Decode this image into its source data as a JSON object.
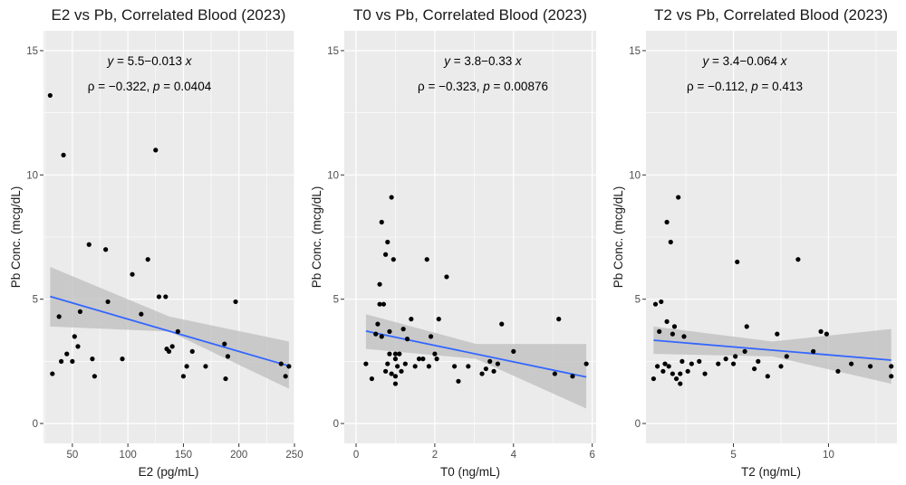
{
  "chart_data": [
    {
      "type": "scatter",
      "title": "E2 vs Pb, Correlated Blood (2023)",
      "xlabel": "E2 (pg/mL)",
      "ylabel": "Pb Conc. (mcg/dL)",
      "xlim": [
        24,
        250
      ],
      "ylim": [
        -0.8,
        15.8
      ],
      "xticks": [
        50,
        100,
        150,
        200,
        250
      ],
      "yticks": [
        0,
        5,
        10,
        15
      ],
      "grid": true,
      "colors": {
        "panel": "#ebebeb",
        "grid": "#ffffff",
        "point": "#000000",
        "line": "#3366ff",
        "band": "#bdbdbd"
      },
      "annotation": {
        "eq": {
          "y_var": "y",
          "eq_mid": " = 5.5−0.013 ",
          "x_var": "x"
        },
        "stat": {
          "rho_label": "ρ = −0.322, ",
          "p_var": "p",
          "p_val": " = 0.0404"
        }
      },
      "fit": {
        "intercept": 5.5,
        "slope": -0.013,
        "ci_low_ends": [
          3.9,
          1.4
        ],
        "ci_high_ends": [
          6.3,
          3.3
        ],
        "ci_low_mid": 3.7,
        "ci_high_mid": 4.3
      },
      "x": [
        30,
        32,
        38,
        40,
        42,
        45,
        50,
        52,
        55,
        57,
        65,
        68,
        70,
        80,
        82,
        95,
        104,
        112,
        118,
        125,
        128,
        134,
        135,
        137,
        140,
        145,
        150,
        153,
        158,
        170,
        187,
        188,
        190,
        197,
        238,
        242,
        245
      ],
      "y": [
        13.2,
        2.0,
        4.3,
        2.5,
        10.8,
        2.8,
        2.5,
        3.5,
        3.1,
        4.5,
        7.2,
        2.6,
        1.9,
        7.0,
        4.9,
        2.6,
        6.0,
        4.4,
        6.6,
        11.0,
        5.1,
        5.1,
        3.0,
        2.9,
        3.1,
        3.7,
        1.9,
        2.3,
        2.9,
        2.3,
        3.2,
        1.8,
        2.7,
        4.9,
        2.4,
        1.9,
        2.3
      ]
    },
    {
      "type": "scatter",
      "title": "T0 vs Pb, Correlated Blood (2023)",
      "xlabel": "T0 (ng/mL)",
      "ylabel": "Pb Conc. (mcg/dL)",
      "xlim": [
        -0.3,
        6.1
      ],
      "ylim": [
        -0.8,
        15.8
      ],
      "xticks": [
        0,
        2,
        4,
        6
      ],
      "yticks": [
        0,
        5,
        10,
        15
      ],
      "grid": true,
      "colors": {
        "panel": "#ebebeb",
        "grid": "#ffffff",
        "point": "#000000",
        "line": "#3366ff",
        "band": "#bdbdbd"
      },
      "annotation": {
        "eq": {
          "y_var": "y",
          "eq_mid": " = 3.8−0.33 ",
          "x_var": "x"
        },
        "stat": {
          "rho_label": "ρ = −0.323, ",
          "p_var": "p",
          "p_val": " = 0.00876"
        }
      },
      "fit": {
        "intercept": 3.8,
        "slope": -0.33,
        "ci_low_ends": [
          3.0,
          0.6
        ],
        "ci_high_ends": [
          4.4,
          3.2
        ],
        "ci_low_mid": 2.6,
        "ci_high_mid": 3.2
      },
      "x": [
        0.25,
        0.4,
        0.5,
        0.55,
        0.6,
        0.6,
        0.65,
        0.65,
        0.7,
        0.75,
        0.75,
        0.8,
        0.8,
        0.85,
        0.85,
        0.9,
        0.9,
        0.95,
        1.0,
        1.0,
        1.0,
        1.0,
        1.05,
        1.1,
        1.15,
        1.2,
        1.25,
        1.3,
        1.4,
        1.5,
        1.6,
        1.7,
        1.8,
        1.85,
        1.9,
        2.0,
        2.05,
        2.1,
        2.3,
        2.5,
        2.6,
        2.85,
        3.2,
        3.3,
        3.4,
        3.5,
        3.6,
        3.7,
        4.0,
        5.05,
        5.15,
        5.5,
        5.85
      ],
      "y": [
        2.4,
        1.8,
        3.6,
        4.0,
        5.6,
        4.8,
        8.1,
        3.5,
        4.8,
        6.8,
        2.1,
        7.3,
        2.4,
        3.7,
        2.8,
        9.1,
        2.0,
        6.6,
        2.8,
        2.6,
        1.9,
        1.6,
        2.3,
        2.8,
        2.1,
        3.8,
        2.4,
        3.4,
        4.2,
        2.3,
        2.6,
        2.6,
        6.6,
        2.3,
        3.5,
        2.8,
        2.6,
        4.2,
        5.9,
        2.3,
        1.7,
        2.3,
        2.0,
        2.2,
        2.5,
        2.1,
        2.4,
        4.0,
        2.9,
        2.0,
        4.2,
        1.9,
        2.4
      ]
    },
    {
      "type": "scatter",
      "title": "T2 vs Pb, Correlated Blood (2023)",
      "xlabel": "T2 (ng/mL)",
      "ylabel": "Pb Conc. (mcg/dL)",
      "xlim": [
        0.4,
        13.6
      ],
      "ylim": [
        -0.8,
        15.8
      ],
      "xticks": [
        5,
        10
      ],
      "yticks": [
        0,
        5,
        10,
        15
      ],
      "grid": true,
      "colors": {
        "panel": "#ebebeb",
        "grid": "#ffffff",
        "point": "#000000",
        "line": "#3366ff",
        "band": "#bdbdbd"
      },
      "annotation": {
        "eq": {
          "y_var": "y",
          "eq_mid": " = 3.4−0.064 ",
          "x_var": "x"
        },
        "stat": {
          "rho_label": "ρ = −0.112, ",
          "p_var": "p",
          "p_val": " = 0.413"
        }
      },
      "fit": {
        "intercept": 3.4,
        "slope": -0.064,
        "ci_low_ends": [
          2.8,
          1.6
        ],
        "ci_high_ends": [
          3.9,
          3.8
        ],
        "ci_low_mid": 2.7,
        "ci_high_mid": 3.3
      },
      "x": [
        0.8,
        0.9,
        1.0,
        1.1,
        1.2,
        1.3,
        1.4,
        1.5,
        1.5,
        1.6,
        1.7,
        1.8,
        1.8,
        1.9,
        2.0,
        2.1,
        2.2,
        2.2,
        2.3,
        2.4,
        2.6,
        2.8,
        3.2,
        3.5,
        4.2,
        4.6,
        5.0,
        5.1,
        5.2,
        5.6,
        5.7,
        6.1,
        6.3,
        6.8,
        7.3,
        7.5,
        7.8,
        8.4,
        9.2,
        9.6,
        9.9,
        10.5,
        11.2,
        12.2,
        13.3,
        13.3
      ],
      "y": [
        1.8,
        4.8,
        2.3,
        3.7,
        4.9,
        2.1,
        2.4,
        4.1,
        8.1,
        2.3,
        7.3,
        2.0,
        3.6,
        3.9,
        1.8,
        9.1,
        2.0,
        1.6,
        2.5,
        3.5,
        2.1,
        2.4,
        2.5,
        2.0,
        2.4,
        2.6,
        2.4,
        2.7,
        6.5,
        2.9,
        3.9,
        2.2,
        2.5,
        1.9,
        3.6,
        2.3,
        2.7,
        6.6,
        2.9,
        3.7,
        3.6,
        2.1,
        2.4,
        2.3,
        2.3,
        1.9
      ]
    }
  ]
}
